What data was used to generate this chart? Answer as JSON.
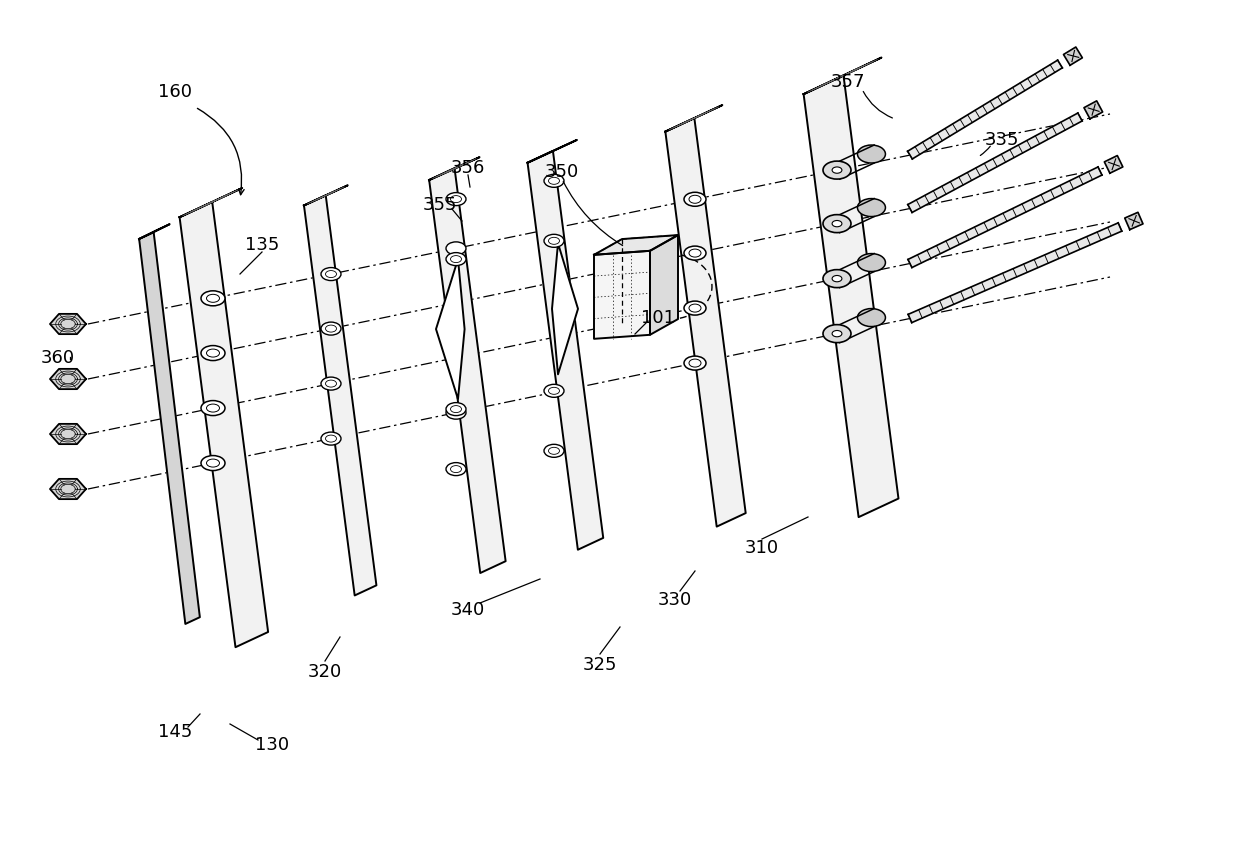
{
  "bg_color": "#ffffff",
  "line_color": "#000000",
  "lw_main": 1.4,
  "lw_thin": 0.7,
  "lw_hatch": 0.55,
  "plate_fill": "#f2f2f2",
  "plate_fill_dark": "#e0e0e0",
  "hatch_fill": "#d8d8d8",
  "rod_fill": "#e8e8e8"
}
